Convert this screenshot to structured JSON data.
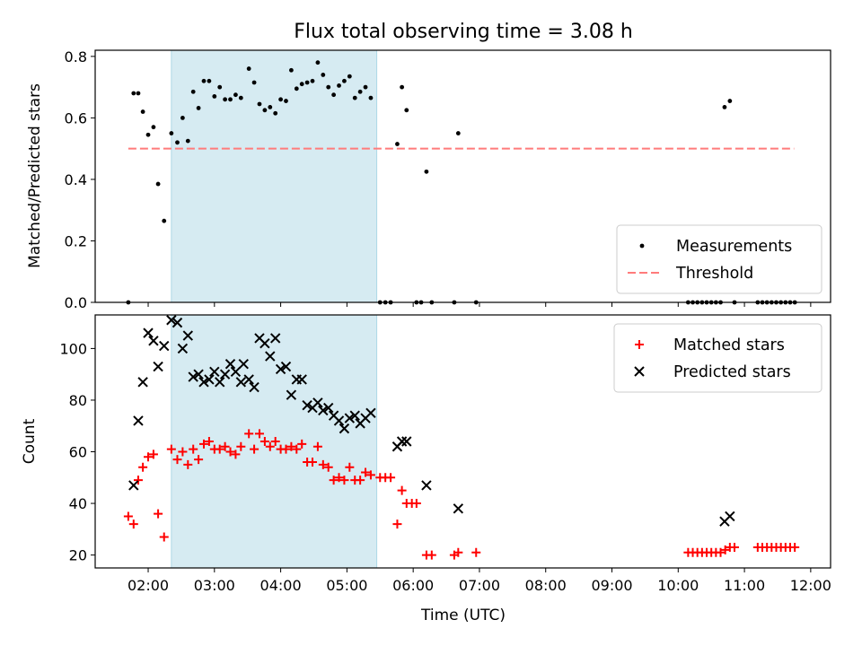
{
  "chart_data": {
    "title": "Flux total observing time = 3.08 h",
    "xlabel": "Time (UTC)",
    "xlim": [
      1.2,
      12.3
    ],
    "xticks": [
      {
        "v": 2,
        "label": "02:00"
      },
      {
        "v": 3,
        "label": "03:00"
      },
      {
        "v": 4,
        "label": "04:00"
      },
      {
        "v": 5,
        "label": "05:00"
      },
      {
        "v": 6,
        "label": "06:00"
      },
      {
        "v": 7,
        "label": "07:00"
      },
      {
        "v": 8,
        "label": "08:00"
      },
      {
        "v": 9,
        "label": "09:00"
      },
      {
        "v": 10,
        "label": "10:00"
      },
      {
        "v": 11,
        "label": "11:00"
      },
      {
        "v": 12,
        "label": "12:00"
      }
    ],
    "shaded_span": [
      2.35,
      5.45
    ],
    "colors": {
      "span": "#add8e6",
      "threshold": "#ff7b7b",
      "matched": "#ff0000",
      "predicted": "#000000",
      "measurement": "#000000"
    },
    "panels": [
      {
        "type": "scatter",
        "ylabel": "Matched/Predicted stars",
        "ylim": [
          0,
          0.82
        ],
        "yticks": [
          {
            "v": 0,
            "label": "0.0"
          },
          {
            "v": 0.2,
            "label": "0.2"
          },
          {
            "v": 0.4,
            "label": "0.4"
          },
          {
            "v": 0.6,
            "label": "0.6"
          },
          {
            "v": 0.8,
            "label": "0.8"
          }
        ],
        "legend_position": "lower-right",
        "threshold": {
          "name": "Threshold",
          "value": 0.5,
          "x_range": [
            1.7,
            11.75
          ]
        },
        "series": [
          {
            "name": "Measurements",
            "marker": "dot",
            "points": [
              [
                1.7,
                0.0
              ],
              [
                1.78,
                0.68
              ],
              [
                1.85,
                0.68
              ],
              [
                1.92,
                0.62
              ],
              [
                2.0,
                0.545
              ],
              [
                2.08,
                0.57
              ],
              [
                2.15,
                0.385
              ],
              [
                2.24,
                0.265
              ],
              [
                2.35,
                0.55
              ],
              [
                2.44,
                0.52
              ],
              [
                2.52,
                0.6
              ],
              [
                2.6,
                0.525
              ],
              [
                2.68,
                0.685
              ],
              [
                2.76,
                0.632
              ],
              [
                2.84,
                0.72
              ],
              [
                2.92,
                0.72
              ],
              [
                3.0,
                0.67
              ],
              [
                3.08,
                0.7
              ],
              [
                3.16,
                0.66
              ],
              [
                3.24,
                0.66
              ],
              [
                3.32,
                0.675
              ],
              [
                3.4,
                0.665
              ],
              [
                3.52,
                0.76
              ],
              [
                3.6,
                0.715
              ],
              [
                3.68,
                0.645
              ],
              [
                3.76,
                0.625
              ],
              [
                3.84,
                0.635
              ],
              [
                3.92,
                0.615
              ],
              [
                4.0,
                0.66
              ],
              [
                4.08,
                0.655
              ],
              [
                4.16,
                0.755
              ],
              [
                4.24,
                0.695
              ],
              [
                4.32,
                0.71
              ],
              [
                4.4,
                0.715
              ],
              [
                4.48,
                0.72
              ],
              [
                4.56,
                0.78
              ],
              [
                4.64,
                0.74
              ],
              [
                4.72,
                0.7
              ],
              [
                4.8,
                0.675
              ],
              [
                4.88,
                0.705
              ],
              [
                4.96,
                0.72
              ],
              [
                5.04,
                0.735
              ],
              [
                5.12,
                0.665
              ],
              [
                5.2,
                0.685
              ],
              [
                5.28,
                0.7
              ],
              [
                5.36,
                0.665
              ],
              [
                5.5,
                0.0
              ],
              [
                5.58,
                0.0
              ],
              [
                5.66,
                0.0
              ],
              [
                5.76,
                0.515
              ],
              [
                5.83,
                0.7
              ],
              [
                5.9,
                0.625
              ],
              [
                6.05,
                0.0
              ],
              [
                6.12,
                0.0
              ],
              [
                6.2,
                0.425
              ],
              [
                6.28,
                0.0
              ],
              [
                6.62,
                0.0
              ],
              [
                6.68,
                0.55
              ],
              [
                6.95,
                0.0
              ],
              [
                10.15,
                0.0
              ],
              [
                10.22,
                0.0
              ],
              [
                10.29,
                0.0
              ],
              [
                10.36,
                0.0
              ],
              [
                10.43,
                0.0
              ],
              [
                10.5,
                0.0
              ],
              [
                10.57,
                0.0
              ],
              [
                10.64,
                0.0
              ],
              [
                10.7,
                0.635
              ],
              [
                10.78,
                0.655
              ],
              [
                10.85,
                0.0
              ],
              [
                11.2,
                0.0
              ],
              [
                11.27,
                0.0
              ],
              [
                11.34,
                0.0
              ],
              [
                11.41,
                0.0
              ],
              [
                11.48,
                0.0
              ],
              [
                11.55,
                0.0
              ],
              [
                11.62,
                0.0
              ],
              [
                11.69,
                0.0
              ],
              [
                11.76,
                0.0
              ]
            ]
          }
        ]
      },
      {
        "type": "scatter",
        "ylabel": "Count",
        "ylim": [
          15,
          113
        ],
        "yticks": [
          {
            "v": 20,
            "label": "20"
          },
          {
            "v": 40,
            "label": "40"
          },
          {
            "v": 60,
            "label": "60"
          },
          {
            "v": 80,
            "label": "80"
          },
          {
            "v": 100,
            "label": "100"
          }
        ],
        "legend_position": "upper-right",
        "series": [
          {
            "name": "Matched stars",
            "marker": "plus",
            "points": [
              [
                1.7,
                35
              ],
              [
                1.78,
                32
              ],
              [
                1.85,
                49
              ],
              [
                1.92,
                54
              ],
              [
                2.0,
                58
              ],
              [
                2.08,
                59
              ],
              [
                2.15,
                36
              ],
              [
                2.24,
                27
              ],
              [
                2.35,
                61
              ],
              [
                2.44,
                57
              ],
              [
                2.52,
                60
              ],
              [
                2.6,
                55
              ],
              [
                2.68,
                61
              ],
              [
                2.76,
                57
              ],
              [
                2.84,
                63
              ],
              [
                2.92,
                64
              ],
              [
                3.0,
                61
              ],
              [
                3.08,
                61
              ],
              [
                3.16,
                62
              ],
              [
                3.24,
                60
              ],
              [
                3.32,
                59
              ],
              [
                3.4,
                62
              ],
              [
                3.52,
                67
              ],
              [
                3.6,
                61
              ],
              [
                3.68,
                67
              ],
              [
                3.76,
                64
              ],
              [
                3.84,
                62
              ],
              [
                3.92,
                64
              ],
              [
                4.0,
                61
              ],
              [
                4.08,
                61
              ],
              [
                4.16,
                62
              ],
              [
                4.24,
                61
              ],
              [
                4.32,
                63
              ],
              [
                4.4,
                56
              ],
              [
                4.48,
                56
              ],
              [
                4.56,
                62
              ],
              [
                4.64,
                55
              ],
              [
                4.72,
                54
              ],
              [
                4.8,
                49
              ],
              [
                4.88,
                50
              ],
              [
                4.96,
                49
              ],
              [
                5.04,
                54
              ],
              [
                5.12,
                49
              ],
              [
                5.2,
                49
              ],
              [
                5.28,
                52
              ],
              [
                5.36,
                51
              ],
              [
                5.5,
                50
              ],
              [
                5.58,
                50
              ],
              [
                5.66,
                50
              ],
              [
                5.76,
                32
              ],
              [
                5.83,
                45
              ],
              [
                5.9,
                40
              ],
              [
                5.98,
                40
              ],
              [
                6.05,
                40
              ],
              [
                6.2,
                20
              ],
              [
                6.28,
                20
              ],
              [
                6.62,
                20
              ],
              [
                6.68,
                21
              ],
              [
                6.95,
                21
              ],
              [
                10.15,
                21
              ],
              [
                10.22,
                21
              ],
              [
                10.29,
                21
              ],
              [
                10.36,
                21
              ],
              [
                10.43,
                21
              ],
              [
                10.5,
                21
              ],
              [
                10.57,
                21
              ],
              [
                10.64,
                21
              ],
              [
                10.71,
                22
              ],
              [
                10.78,
                23
              ],
              [
                10.85,
                23
              ],
              [
                11.2,
                23
              ],
              [
                11.27,
                23
              ],
              [
                11.34,
                23
              ],
              [
                11.41,
                23
              ],
              [
                11.48,
                23
              ],
              [
                11.55,
                23
              ],
              [
                11.62,
                23
              ],
              [
                11.69,
                23
              ],
              [
                11.76,
                23
              ]
            ]
          },
          {
            "name": "Predicted stars",
            "marker": "x",
            "points": [
              [
                1.78,
                47
              ],
              [
                1.85,
                72
              ],
              [
                1.92,
                87
              ],
              [
                2.0,
                106
              ],
              [
                2.08,
                103
              ],
              [
                2.15,
                93
              ],
              [
                2.24,
                101
              ],
              [
                2.35,
                111
              ],
              [
                2.44,
                110
              ],
              [
                2.52,
                100
              ],
              [
                2.6,
                105
              ],
              [
                2.68,
                89
              ],
              [
                2.76,
                90
              ],
              [
                2.84,
                87
              ],
              [
                2.92,
                88
              ],
              [
                3.0,
                91
              ],
              [
                3.08,
                87
              ],
              [
                3.16,
                90
              ],
              [
                3.24,
                94
              ],
              [
                3.32,
                91
              ],
              [
                3.4,
                87
              ],
              [
                3.44,
                94
              ],
              [
                3.52,
                88
              ],
              [
                3.6,
                85
              ],
              [
                3.68,
                104
              ],
              [
                3.76,
                102
              ],
              [
                3.84,
                97
              ],
              [
                3.92,
                104
              ],
              [
                4.0,
                92
              ],
              [
                4.08,
                93
              ],
              [
                4.16,
                82
              ],
              [
                4.24,
                88
              ],
              [
                4.32,
                88
              ],
              [
                4.4,
                78
              ],
              [
                4.48,
                77
              ],
              [
                4.56,
                79
              ],
              [
                4.64,
                76
              ],
              [
                4.72,
                77
              ],
              [
                4.8,
                74
              ],
              [
                4.88,
                72
              ],
              [
                4.96,
                69
              ],
              [
                5.04,
                73
              ],
              [
                5.12,
                74
              ],
              [
                5.2,
                71
              ],
              [
                5.28,
                73
              ],
              [
                5.36,
                75
              ],
              [
                5.76,
                62
              ],
              [
                5.83,
                64
              ],
              [
                5.9,
                64
              ],
              [
                6.2,
                47
              ],
              [
                6.68,
                38
              ],
              [
                10.7,
                33
              ],
              [
                10.78,
                35
              ]
            ]
          }
        ]
      }
    ]
  }
}
